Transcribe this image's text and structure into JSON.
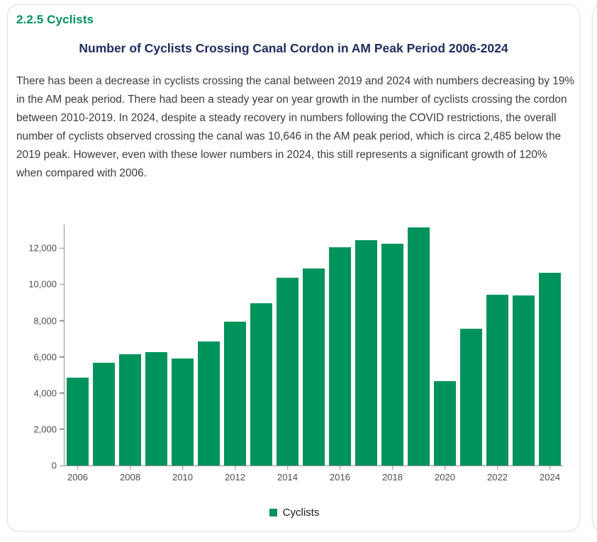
{
  "card": {
    "section_heading": "2.2.5 Cyclists",
    "chart_title": "Number of Cyclists Crossing Canal Cordon in AM Peak Period 2006-2024",
    "paragraph": "There has been a decrease in cyclists crossing the canal between 2019 and 2024 with numbers decreasing by 19% in the AM peak period. There had been a steady year on year growth in the number of cyclists crossing the cordon between 2010-2019. In 2024, despite a steady recovery in numbers following the COVID restrictions, the overall number of cyclists observed crossing the canal was 10,646 in the AM peak period, which is circa 2,485 below the 2019 peak. However, even with these lower numbers in 2024, this still represents a significant growth of 120% when compared with 2006."
  },
  "chart_data": {
    "type": "bar",
    "title": "Number of Cyclists Crossing Canal Cordon in AM Peak Period 2006-2024",
    "categories": [
      "2006",
      "2007",
      "2008",
      "2009",
      "2010",
      "2011",
      "2012",
      "2013",
      "2014",
      "2015",
      "2016",
      "2017",
      "2018",
      "2019",
      "2020",
      "2021",
      "2022",
      "2023",
      "2024"
    ],
    "series": [
      {
        "name": "Cyclists",
        "values": [
          4839,
          5656,
          6130,
          6245,
          5923,
          6843,
          7948,
          8961,
          10349,
          10893,
          12044,
          12439,
          12246,
          13131,
          4672,
          7557,
          9444,
          9378,
          10646
        ]
      }
    ],
    "legend": [
      "Cyclists"
    ],
    "legend_position": "bottom",
    "xlabel": "",
    "ylabel": "",
    "ylim": [
      0,
      13300
    ],
    "yticks": [
      0,
      2000,
      4000,
      6000,
      8000,
      10000,
      12000
    ],
    "xtick_labels": [
      "2006",
      "2008",
      "2010",
      "2012",
      "2014",
      "2016",
      "2018",
      "2020",
      "2022",
      "2024"
    ],
    "grid": false,
    "bar_color": "#00935c"
  },
  "colors": {
    "accent_green": "#00935c",
    "title_navy": "#212c5e",
    "body_text": "#3c3c3c",
    "axis_text": "#4d4d4d",
    "axis_line": "#8f8f8f",
    "card_border": "#e3e3e6"
  }
}
